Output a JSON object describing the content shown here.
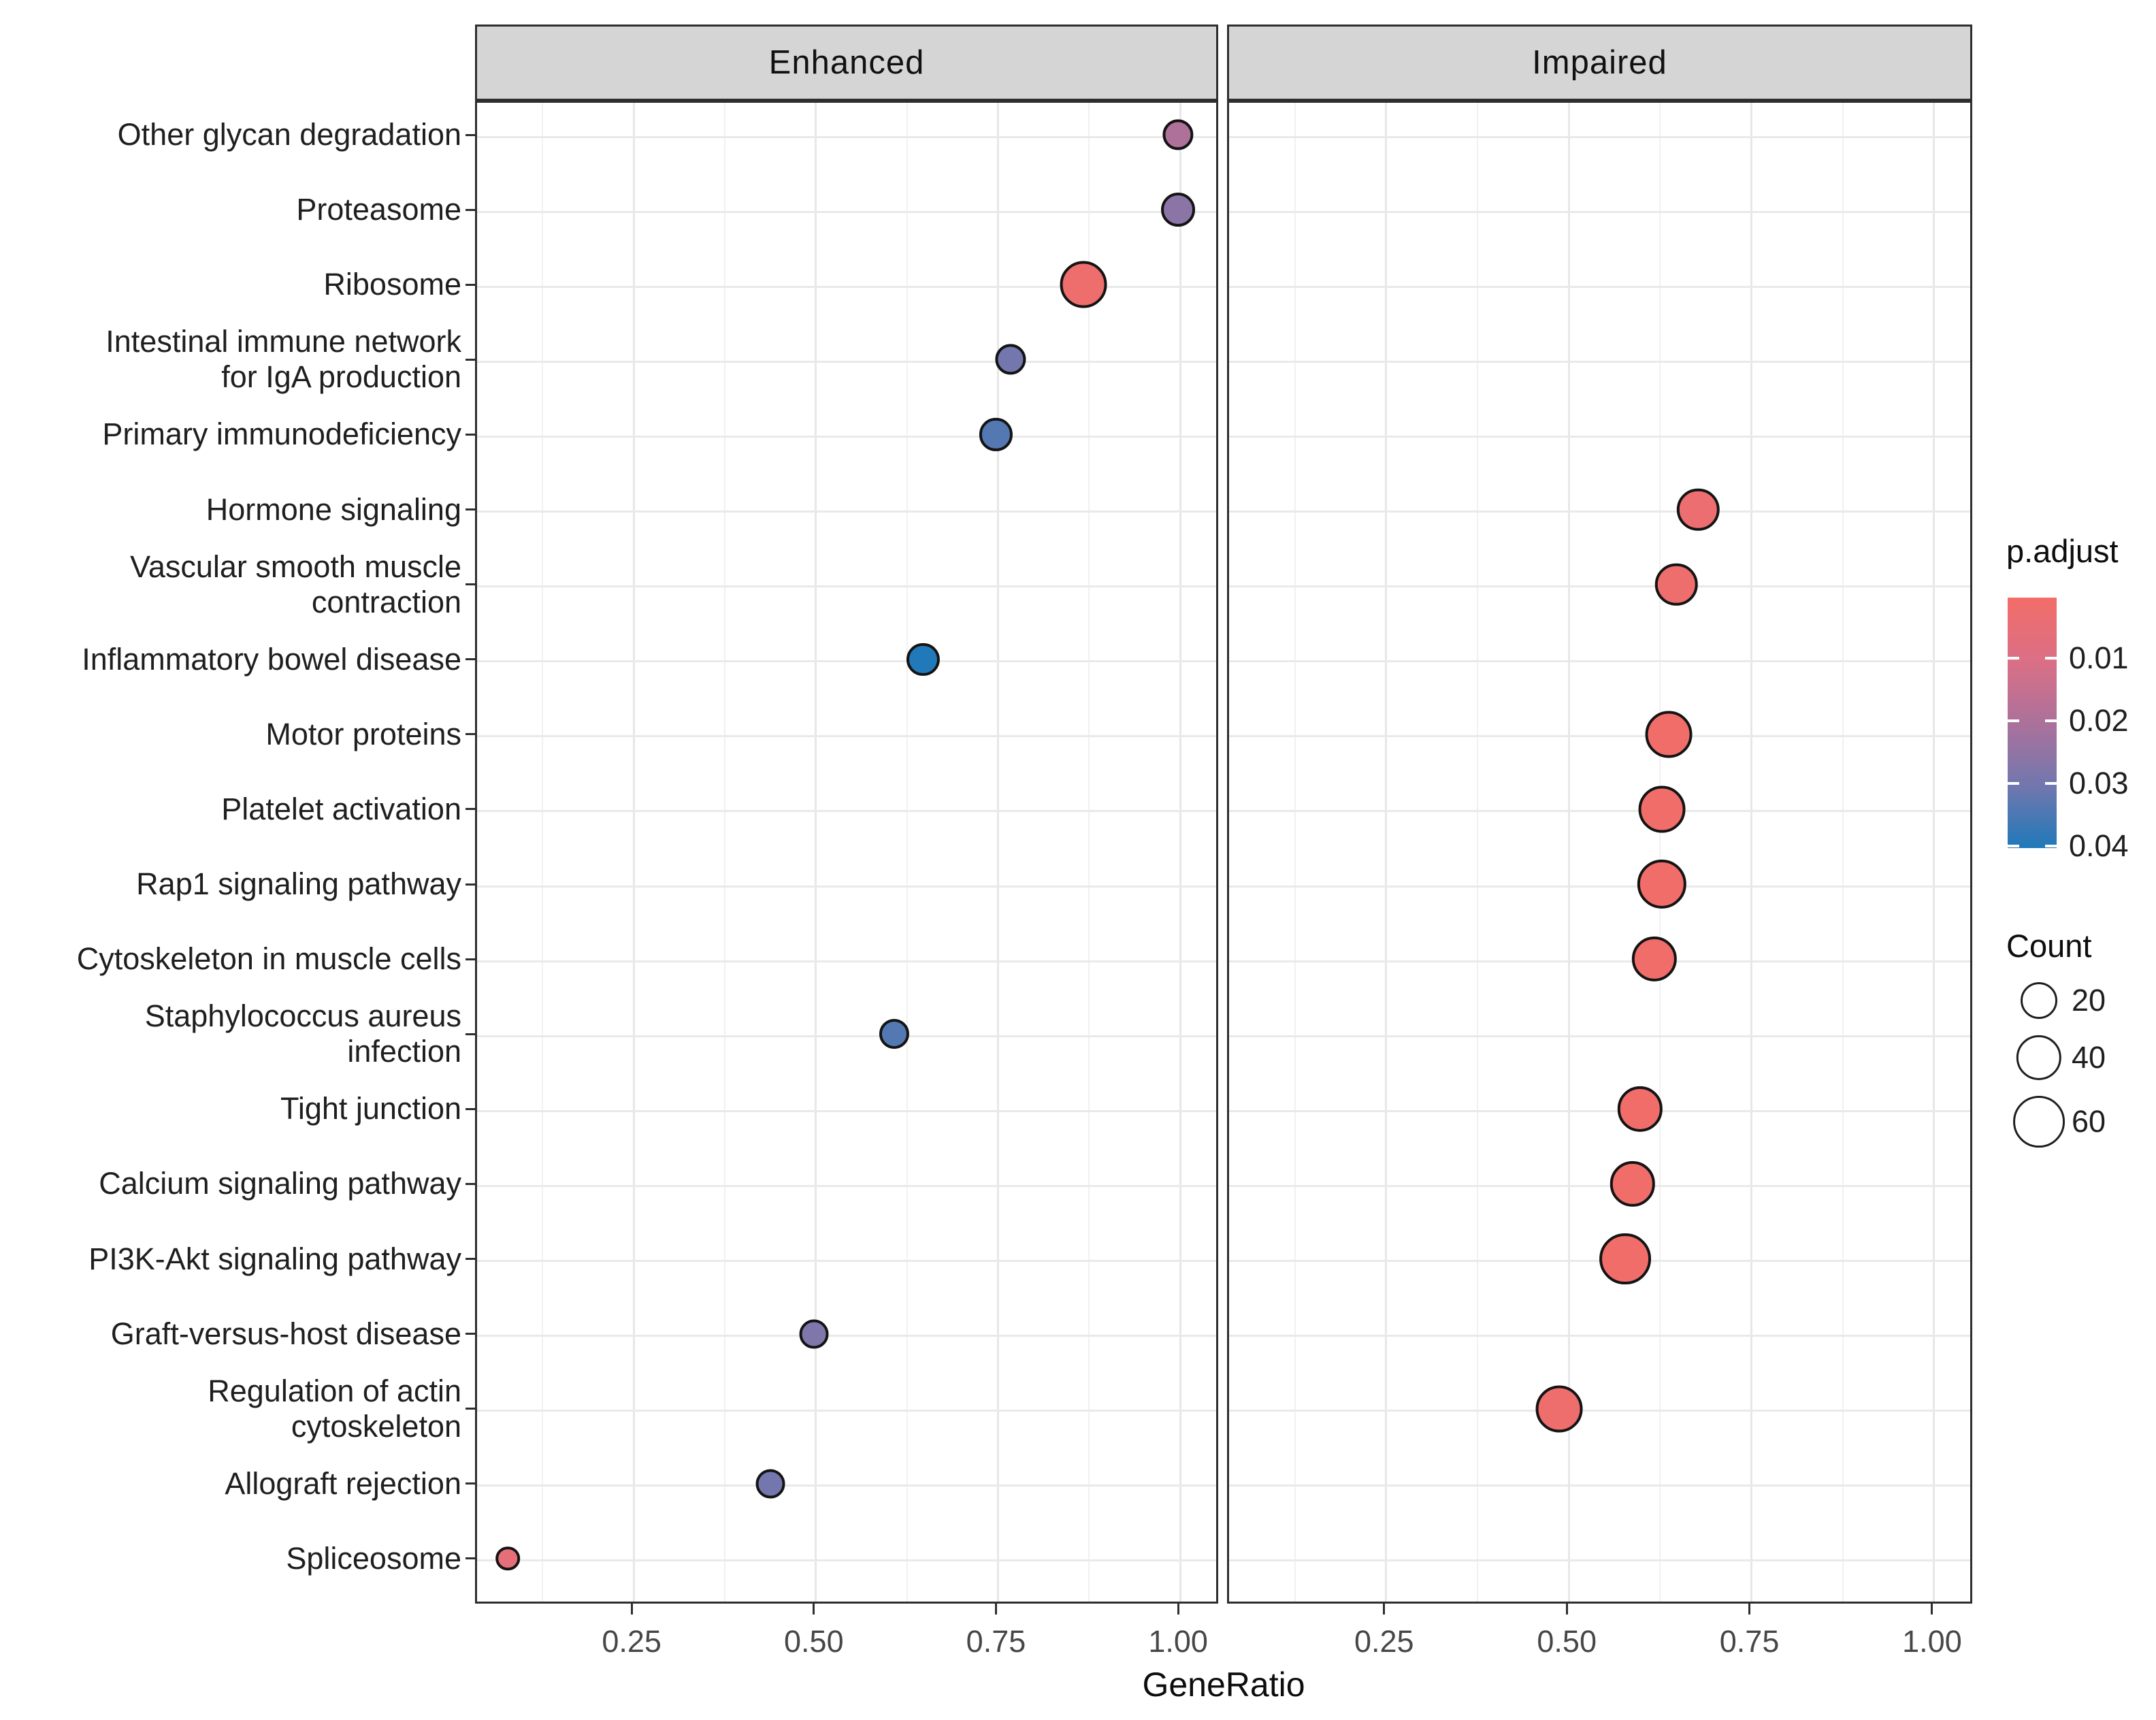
{
  "chart_data": {
    "type": "scatter",
    "subtype": "enrichment-dotplot",
    "title": "",
    "facets": [
      "Enhanced",
      "Impaired"
    ],
    "xlabel": "GeneRatio",
    "x_ticks": [
      {
        "label": "0.25",
        "value": 0.25
      },
      {
        "label": "0.50",
        "value": 0.5
      },
      {
        "label": "0.75",
        "value": 0.75
      },
      {
        "label": "1.00",
        "value": 1.0
      }
    ],
    "x_minor_ticks": [
      0.125,
      0.375,
      0.625,
      0.875
    ],
    "x_domain": [
      0.035,
      1.055
    ],
    "grid": "on",
    "points": [
      {
        "label": "Other glycan degradation",
        "facet": "Enhanced",
        "gene_ratio": 1.0,
        "p_adjust": 0.02,
        "count": 10
      },
      {
        "label": "Proteasome",
        "facet": "Enhanced",
        "gene_ratio": 1.0,
        "p_adjust": 0.026,
        "count": 15
      },
      {
        "label": "Ribosome",
        "facet": "Enhanced",
        "gene_ratio": 0.87,
        "p_adjust": 0.002,
        "count": 45
      },
      {
        "label": "Intestinal immune network\nfor IgA production",
        "facet": "Enhanced",
        "gene_ratio": 0.77,
        "p_adjust": 0.03,
        "count": 10
      },
      {
        "label": "Primary immunodeficiency",
        "facet": "Enhanced",
        "gene_ratio": 0.75,
        "p_adjust": 0.034,
        "count": 13
      },
      {
        "label": "Hormone signaling",
        "facet": "Impaired",
        "gene_ratio": 0.68,
        "p_adjust": 0.003,
        "count": 33
      },
      {
        "label": "Vascular smooth muscle\ncontraction",
        "facet": "Impaired",
        "gene_ratio": 0.65,
        "p_adjust": 0.002,
        "count": 33
      },
      {
        "label": "Inflammatory bowel disease",
        "facet": "Enhanced",
        "gene_ratio": 0.65,
        "p_adjust": 0.04,
        "count": 13
      },
      {
        "label": "Motor proteins",
        "facet": "Impaired",
        "gene_ratio": 0.64,
        "p_adjust": 0.001,
        "count": 45
      },
      {
        "label": "Platelet activation",
        "facet": "Impaired",
        "gene_ratio": 0.63,
        "p_adjust": 0.001,
        "count": 45
      },
      {
        "label": "Rap1 signaling pathway",
        "facet": "Impaired",
        "gene_ratio": 0.63,
        "p_adjust": 0.001,
        "count": 52
      },
      {
        "label": "Cytoskeleton in muscle cells",
        "facet": "Impaired",
        "gene_ratio": 0.62,
        "p_adjust": 0.001,
        "count": 40
      },
      {
        "label": "Staphylococcus aureus\ninfection",
        "facet": "Enhanced",
        "gene_ratio": 0.61,
        "p_adjust": 0.034,
        "count": 9
      },
      {
        "label": "Tight junction",
        "facet": "Impaired",
        "gene_ratio": 0.6,
        "p_adjust": 0.001,
        "count": 40
      },
      {
        "label": "Calcium signaling pathway",
        "facet": "Impaired",
        "gene_ratio": 0.59,
        "p_adjust": 0.001,
        "count": 40
      },
      {
        "label": "PI3K-Akt signaling pathway",
        "facet": "Impaired",
        "gene_ratio": 0.58,
        "p_adjust": 0.001,
        "count": 60
      },
      {
        "label": "Graft-versus-host disease",
        "facet": "Enhanced",
        "gene_ratio": 0.5,
        "p_adjust": 0.028,
        "count": 8
      },
      {
        "label": "Regulation of actin\ncytoskeleton",
        "facet": "Impaired",
        "gene_ratio": 0.49,
        "p_adjust": 0.002,
        "count": 45
      },
      {
        "label": "Allograft rejection",
        "facet": "Enhanced",
        "gene_ratio": 0.44,
        "p_adjust": 0.03,
        "count": 8
      },
      {
        "label": "Spliceosome",
        "facet": "Enhanced",
        "gene_ratio": 0.08,
        "p_adjust": 0.006,
        "count": 3
      }
    ],
    "legend": {
      "p_adjust": {
        "title": "p.adjust",
        "domain": [
          0.0003,
          0.0403
        ],
        "ticks": [
          {
            "label": "0.01",
            "value": 0.01
          },
          {
            "label": "0.02",
            "value": 0.02
          },
          {
            "label": "0.03",
            "value": 0.03
          },
          {
            "label": "0.04",
            "value": 0.04
          }
        ],
        "gradient": [
          "#F26D68",
          "#DB6F85",
          "#AC719B",
          "#7277AE",
          "#1F79B9"
        ]
      },
      "count": {
        "title": "Count",
        "items": [
          {
            "label": "20",
            "value": 20
          },
          {
            "label": "40",
            "value": 40
          },
          {
            "label": "60",
            "value": 60
          }
        ]
      }
    },
    "colors": {
      "panel_border": "#2e2e2e",
      "strip_background": "#d5d5d5",
      "grid_major": "#e9e9e9",
      "grid_minor": "#f1f1f1",
      "dot_outline": "#141414",
      "axis_text": "#474747",
      "label_text": "#1f1f1f"
    }
  }
}
